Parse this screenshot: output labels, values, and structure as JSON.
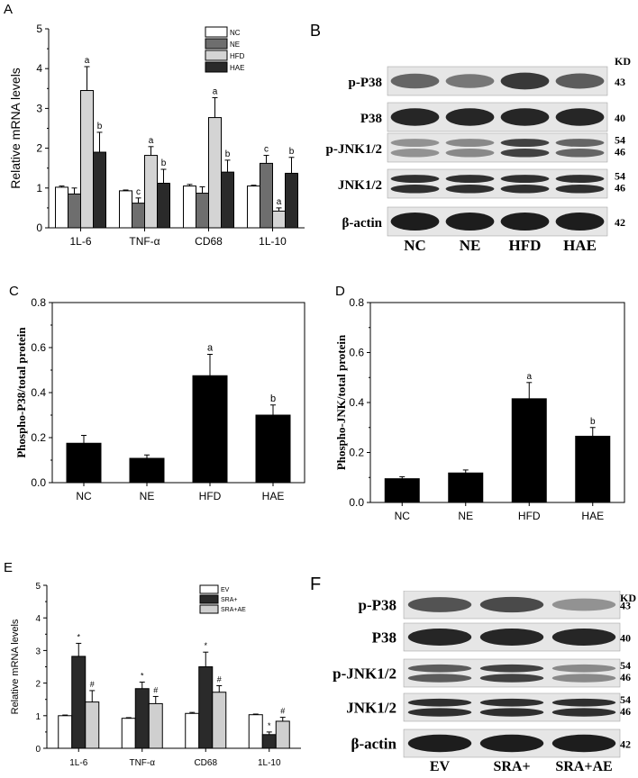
{
  "panel_labels": {
    "A": "A",
    "B": "B",
    "C": "C",
    "D": "D",
    "E": "E",
    "F": "F"
  },
  "chart_data": [
    {
      "panel": "A",
      "type": "bar",
      "ylabel": "Relative mRNA levels",
      "ylim": [
        0,
        5
      ],
      "yticks": [
        "0",
        "1",
        "2",
        "3",
        "4",
        "5"
      ],
      "categories": [
        "1L-6",
        "TNF-α",
        "CD68",
        "1L-10"
      ],
      "legend": {
        "placement": "top-right"
      },
      "series": [
        {
          "name": "NC",
          "color": "#ffffff",
          "values": [
            1.02,
            0.93,
            1.05,
            1.05
          ],
          "errors": [
            0.03,
            0.02,
            0.04,
            0.02
          ],
          "labels": [
            "",
            "",
            "",
            ""
          ]
        },
        {
          "name": "NE",
          "color": "#6e6e6e",
          "values": [
            0.85,
            0.62,
            0.87,
            1.62
          ],
          "errors": [
            0.15,
            0.13,
            0.16,
            0.2
          ],
          "labels": [
            "",
            "c",
            "",
            "c"
          ]
        },
        {
          "name": "HFD",
          "color": "#d4d4d4",
          "values": [
            3.45,
            1.82,
            2.77,
            0.42
          ],
          "errors": [
            0.6,
            0.22,
            0.5,
            0.08
          ],
          "labels": [
            "a",
            "a",
            "a",
            "a"
          ]
        },
        {
          "name": "HAE",
          "color": "#2a2a2a",
          "values": [
            1.9,
            1.12,
            1.4,
            1.37
          ],
          "errors": [
            0.5,
            0.35,
            0.3,
            0.4
          ],
          "labels": [
            "b",
            "b",
            "b",
            "b"
          ]
        }
      ]
    },
    {
      "panel": "C",
      "type": "bar",
      "ylabel": "Phospho-P38/total protein",
      "ylim": [
        0,
        0.8
      ],
      "yticks": [
        "0.0",
        "0.2",
        "0.4",
        "0.6",
        "0.8"
      ],
      "categories": [
        "NC",
        "NE",
        "HFD",
        "HAE"
      ],
      "values": [
        0.175,
        0.108,
        0.475,
        0.3
      ],
      "errors": [
        0.035,
        0.015,
        0.095,
        0.045
      ],
      "labels": [
        "",
        "",
        "a",
        "b"
      ]
    },
    {
      "panel": "D",
      "type": "bar",
      "ylabel": "Phospho-JNK/total protein",
      "ylim": [
        0,
        0.8
      ],
      "yticks": [
        "0.0",
        "0.2",
        "0.4",
        "0.6",
        "0.8"
      ],
      "categories": [
        "NC",
        "NE",
        "HFD",
        "HAE"
      ],
      "values": [
        0.095,
        0.118,
        0.415,
        0.265
      ],
      "errors": [
        0.008,
        0.012,
        0.065,
        0.035
      ],
      "labels": [
        "",
        "",
        "a",
        "b"
      ]
    },
    {
      "panel": "E",
      "type": "bar",
      "ylabel": "Relative mRNA levels",
      "ylim": [
        0,
        5
      ],
      "yticks": [
        "0",
        "1",
        "2",
        "3",
        "4",
        "5"
      ],
      "categories": [
        "1L-6",
        "TNF-α",
        "CD68",
        "1L-10"
      ],
      "legend": {
        "placement": "top-right"
      },
      "series": [
        {
          "name": "EV",
          "color": "#ffffff",
          "values": [
            1.0,
            0.92,
            1.07,
            1.03
          ],
          "errors": [
            0.02,
            0.02,
            0.03,
            0.02
          ],
          "labels": [
            "",
            "",
            "",
            ""
          ]
        },
        {
          "name": "SRA+",
          "color": "#2a2a2a",
          "values": [
            2.82,
            1.83,
            2.5,
            0.42
          ],
          "errors": [
            0.4,
            0.2,
            0.45,
            0.08
          ],
          "labels": [
            "*",
            "*",
            "*",
            "*"
          ]
        },
        {
          "name": "SRA+AE",
          "color": "#cfcfcf",
          "values": [
            1.42,
            1.37,
            1.72,
            0.83
          ],
          "errors": [
            0.35,
            0.22,
            0.2,
            0.12
          ],
          "labels": [
            "#",
            "#",
            "#",
            "#"
          ]
        }
      ]
    }
  ],
  "blots": [
    {
      "panel": "B",
      "kd_label": "KD",
      "lanes": [
        "NC",
        "NE",
        "HFD",
        "HAE"
      ],
      "rows": [
        {
          "name": "p-P38",
          "kd": [
            "43"
          ],
          "bands": 1,
          "intensity": [
            0.55,
            0.45,
            0.8,
            0.6
          ]
        },
        {
          "name": "P38",
          "kd": [
            "40"
          ],
          "bands": 1,
          "intensity": [
            0.9,
            0.9,
            0.9,
            0.9
          ]
        },
        {
          "name": "p-JNK1/2",
          "kd": [
            "54",
            "46"
          ],
          "bands": 2,
          "intensity": [
            0.3,
            0.35,
            0.75,
            0.55
          ]
        },
        {
          "name": "JNK1/2",
          "kd": [
            "54",
            "46"
          ],
          "bands": 2,
          "intensity": [
            0.85,
            0.85,
            0.85,
            0.85
          ]
        },
        {
          "name": "β-actin",
          "kd": [
            "42"
          ],
          "bands": 1,
          "intensity": [
            0.95,
            0.95,
            0.95,
            0.95
          ]
        }
      ]
    },
    {
      "panel": "F",
      "kd_label": "KD",
      "lanes": [
        "EV",
        "SRA+",
        "SRA+AE"
      ],
      "rows": [
        {
          "name": "p-P38",
          "kd": [
            "43"
          ],
          "bands": 1,
          "intensity": [
            0.65,
            0.7,
            0.3
          ]
        },
        {
          "name": "P38",
          "kd": [
            "40"
          ],
          "bands": 1,
          "intensity": [
            0.9,
            0.9,
            0.9
          ]
        },
        {
          "name": "p-JNK1/2",
          "kd": [
            "54",
            "46"
          ],
          "bands": 2,
          "intensity": [
            0.6,
            0.75,
            0.35
          ]
        },
        {
          "name": "JNK1/2",
          "kd": [
            "54",
            "46"
          ],
          "bands": 2,
          "intensity": [
            0.85,
            0.85,
            0.85
          ]
        },
        {
          "name": "β-actin",
          "kd": [
            "42"
          ],
          "bands": 1,
          "intensity": [
            0.95,
            0.95,
            0.95
          ]
        }
      ]
    }
  ]
}
